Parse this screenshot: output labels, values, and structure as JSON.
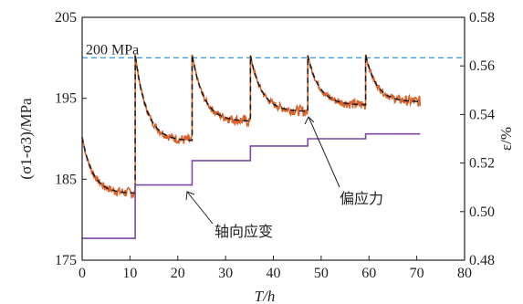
{
  "chart_data": {
    "type": "line",
    "xlabel": "T/h",
    "ylabel_left": "(σ1-σ3)/MPa",
    "ylabel_right": "ε/%",
    "xlim": [
      0,
      80
    ],
    "ylim_left": [
      175,
      205
    ],
    "ylim_right": [
      0.48,
      0.58
    ],
    "x_ticks": [
      "0",
      "10",
      "20",
      "30",
      "40",
      "50",
      "60",
      "70",
      "80"
    ],
    "y_left_ticks": [
      "175",
      "185",
      "195",
      "205"
    ],
    "y_right_ticks": [
      "0.48",
      "0.50",
      "0.52",
      "0.54",
      "0.56",
      "0.58"
    ],
    "reference_line": {
      "label": "200 MPa",
      "value": 200,
      "color": "#4a9fd6"
    },
    "annotations": [
      {
        "text": "偏应力",
        "series": "deviatoric_stress"
      },
      {
        "text": "轴向应变",
        "series": "axial_strain"
      }
    ],
    "grid": false,
    "series": [
      {
        "key": "deviatoric_stress",
        "axis": "left",
        "color": "#d9622b",
        "segments": [
          {
            "t_start": 0,
            "t_end": 11.1,
            "start_value": 190.2,
            "end_value": 183.3
          },
          {
            "t_start": 11.1,
            "t_end": 23,
            "start_value": 200.4,
            "end_value": 189.8
          },
          {
            "t_start": 23,
            "t_end": 35.2,
            "start_value": 200.4,
            "end_value": 192.2
          },
          {
            "t_start": 35.2,
            "t_end": 47.2,
            "start_value": 200.3,
            "end_value": 193.4
          },
          {
            "t_start": 47.2,
            "t_end": 59.3,
            "start_value": 200.3,
            "end_value": 194.2
          },
          {
            "t_start": 59.3,
            "t_end": 70.7,
            "start_value": 200.4,
            "end_value": 194.6
          }
        ]
      },
      {
        "key": "fitted_stress",
        "axis": "left",
        "color": "#1a1a1a",
        "dashed": true,
        "segments": [
          {
            "t_start": 0,
            "t_end": 11.1,
            "start_value": 190.2,
            "end_value": 183.3
          },
          {
            "t_start": 11.1,
            "t_end": 23,
            "start_value": 200.4,
            "end_value": 189.8
          },
          {
            "t_start": 23,
            "t_end": 35.2,
            "start_value": 200.4,
            "end_value": 192.2
          },
          {
            "t_start": 35.2,
            "t_end": 47.2,
            "start_value": 200.3,
            "end_value": 193.4
          },
          {
            "t_start": 47.2,
            "t_end": 59.3,
            "start_value": 200.3,
            "end_value": 194.2
          },
          {
            "t_start": 59.3,
            "t_end": 70.7,
            "start_value": 200.4,
            "end_value": 194.6
          }
        ]
      },
      {
        "key": "axial_strain",
        "axis": "right",
        "color": "#7b4aa8",
        "steps": [
          {
            "t_start": 0,
            "t_end": 11.1,
            "value": 0.489
          },
          {
            "t_start": 11.1,
            "t_end": 23,
            "value": 0.511
          },
          {
            "t_start": 23,
            "t_end": 35.2,
            "value": 0.521
          },
          {
            "t_start": 35.2,
            "t_end": 47.2,
            "value": 0.527
          },
          {
            "t_start": 47.2,
            "t_end": 59.3,
            "value": 0.53
          },
          {
            "t_start": 59.3,
            "t_end": 70.7,
            "value": 0.532
          }
        ]
      }
    ]
  }
}
